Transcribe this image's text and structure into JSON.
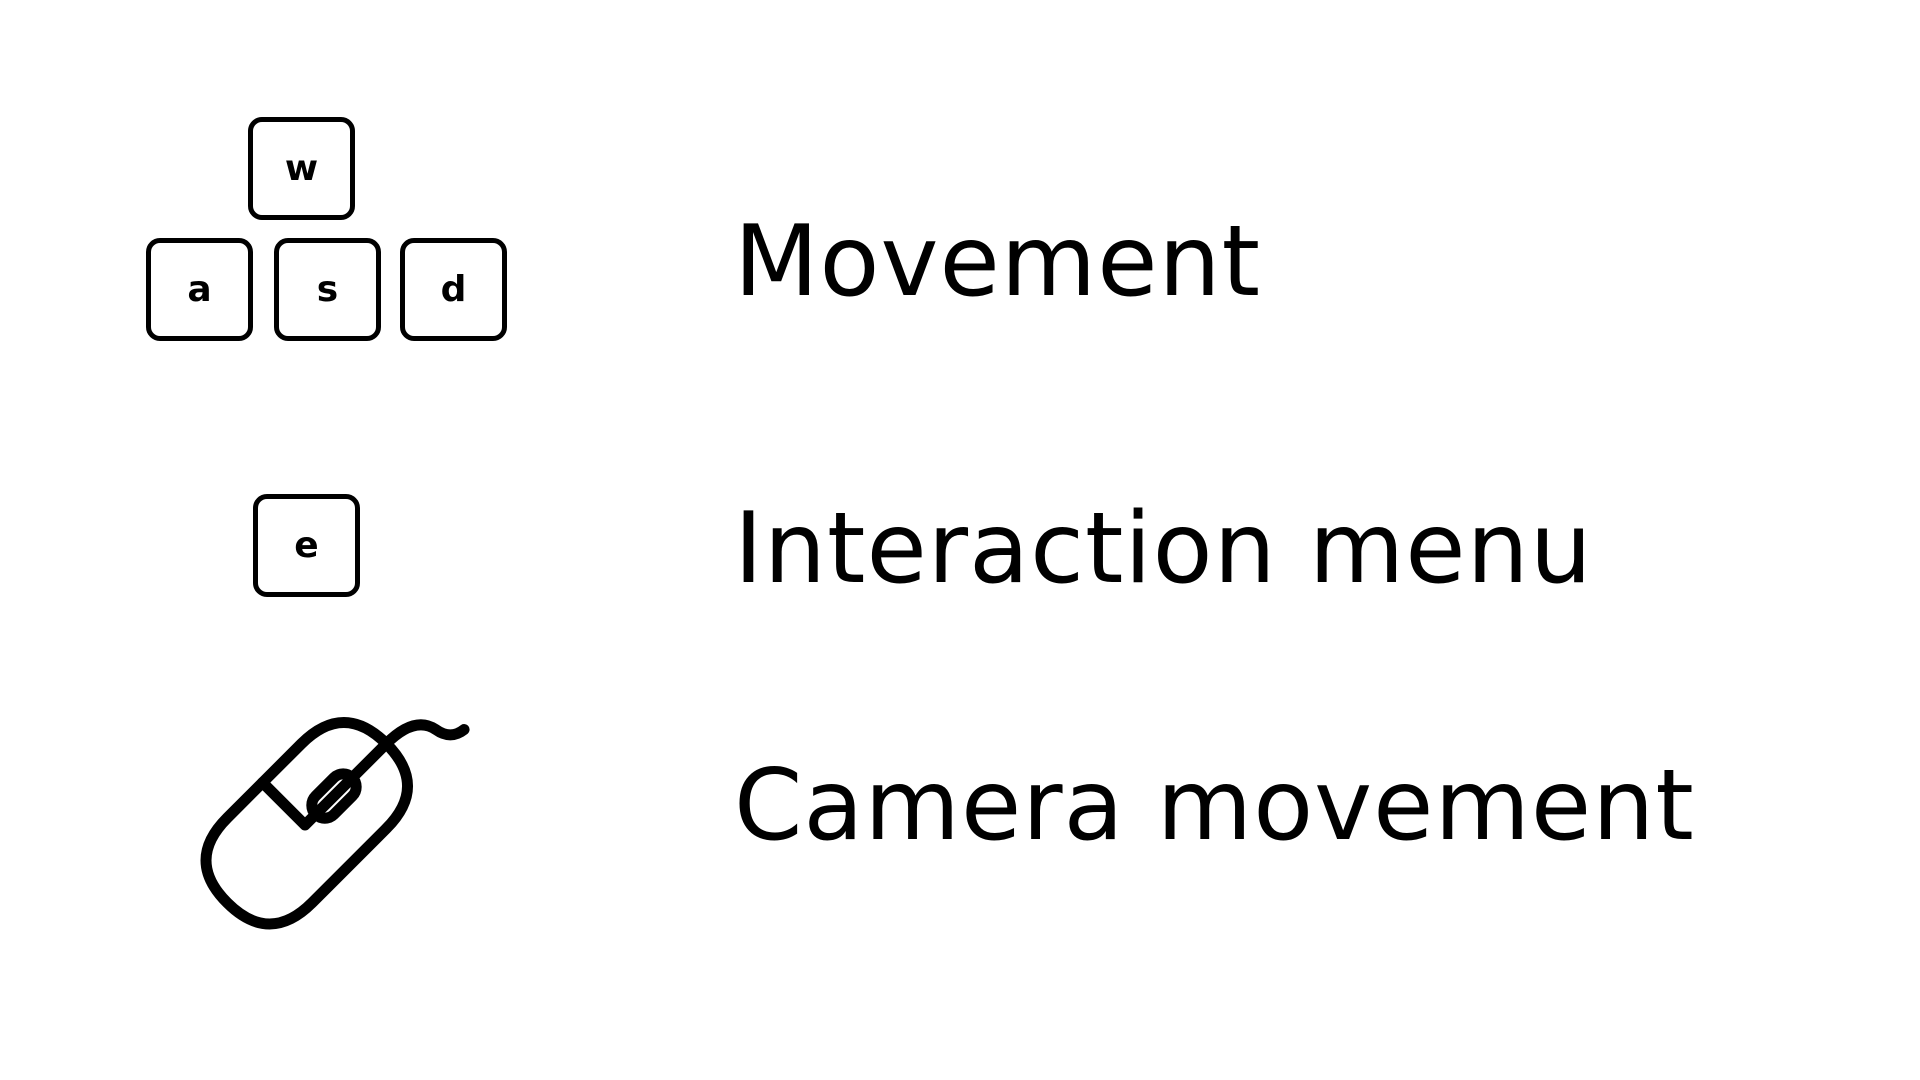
{
  "controls": [
    {
      "keys": [
        "w",
        "a",
        "s",
        "d"
      ],
      "label": "Movement"
    },
    {
      "keys": [
        "e"
      ],
      "label": "Interaction menu"
    },
    {
      "icon": "mouse-icon",
      "label": "Camera movement"
    }
  ],
  "colors": {
    "background": "#ffffff",
    "foreground": "#000000"
  }
}
